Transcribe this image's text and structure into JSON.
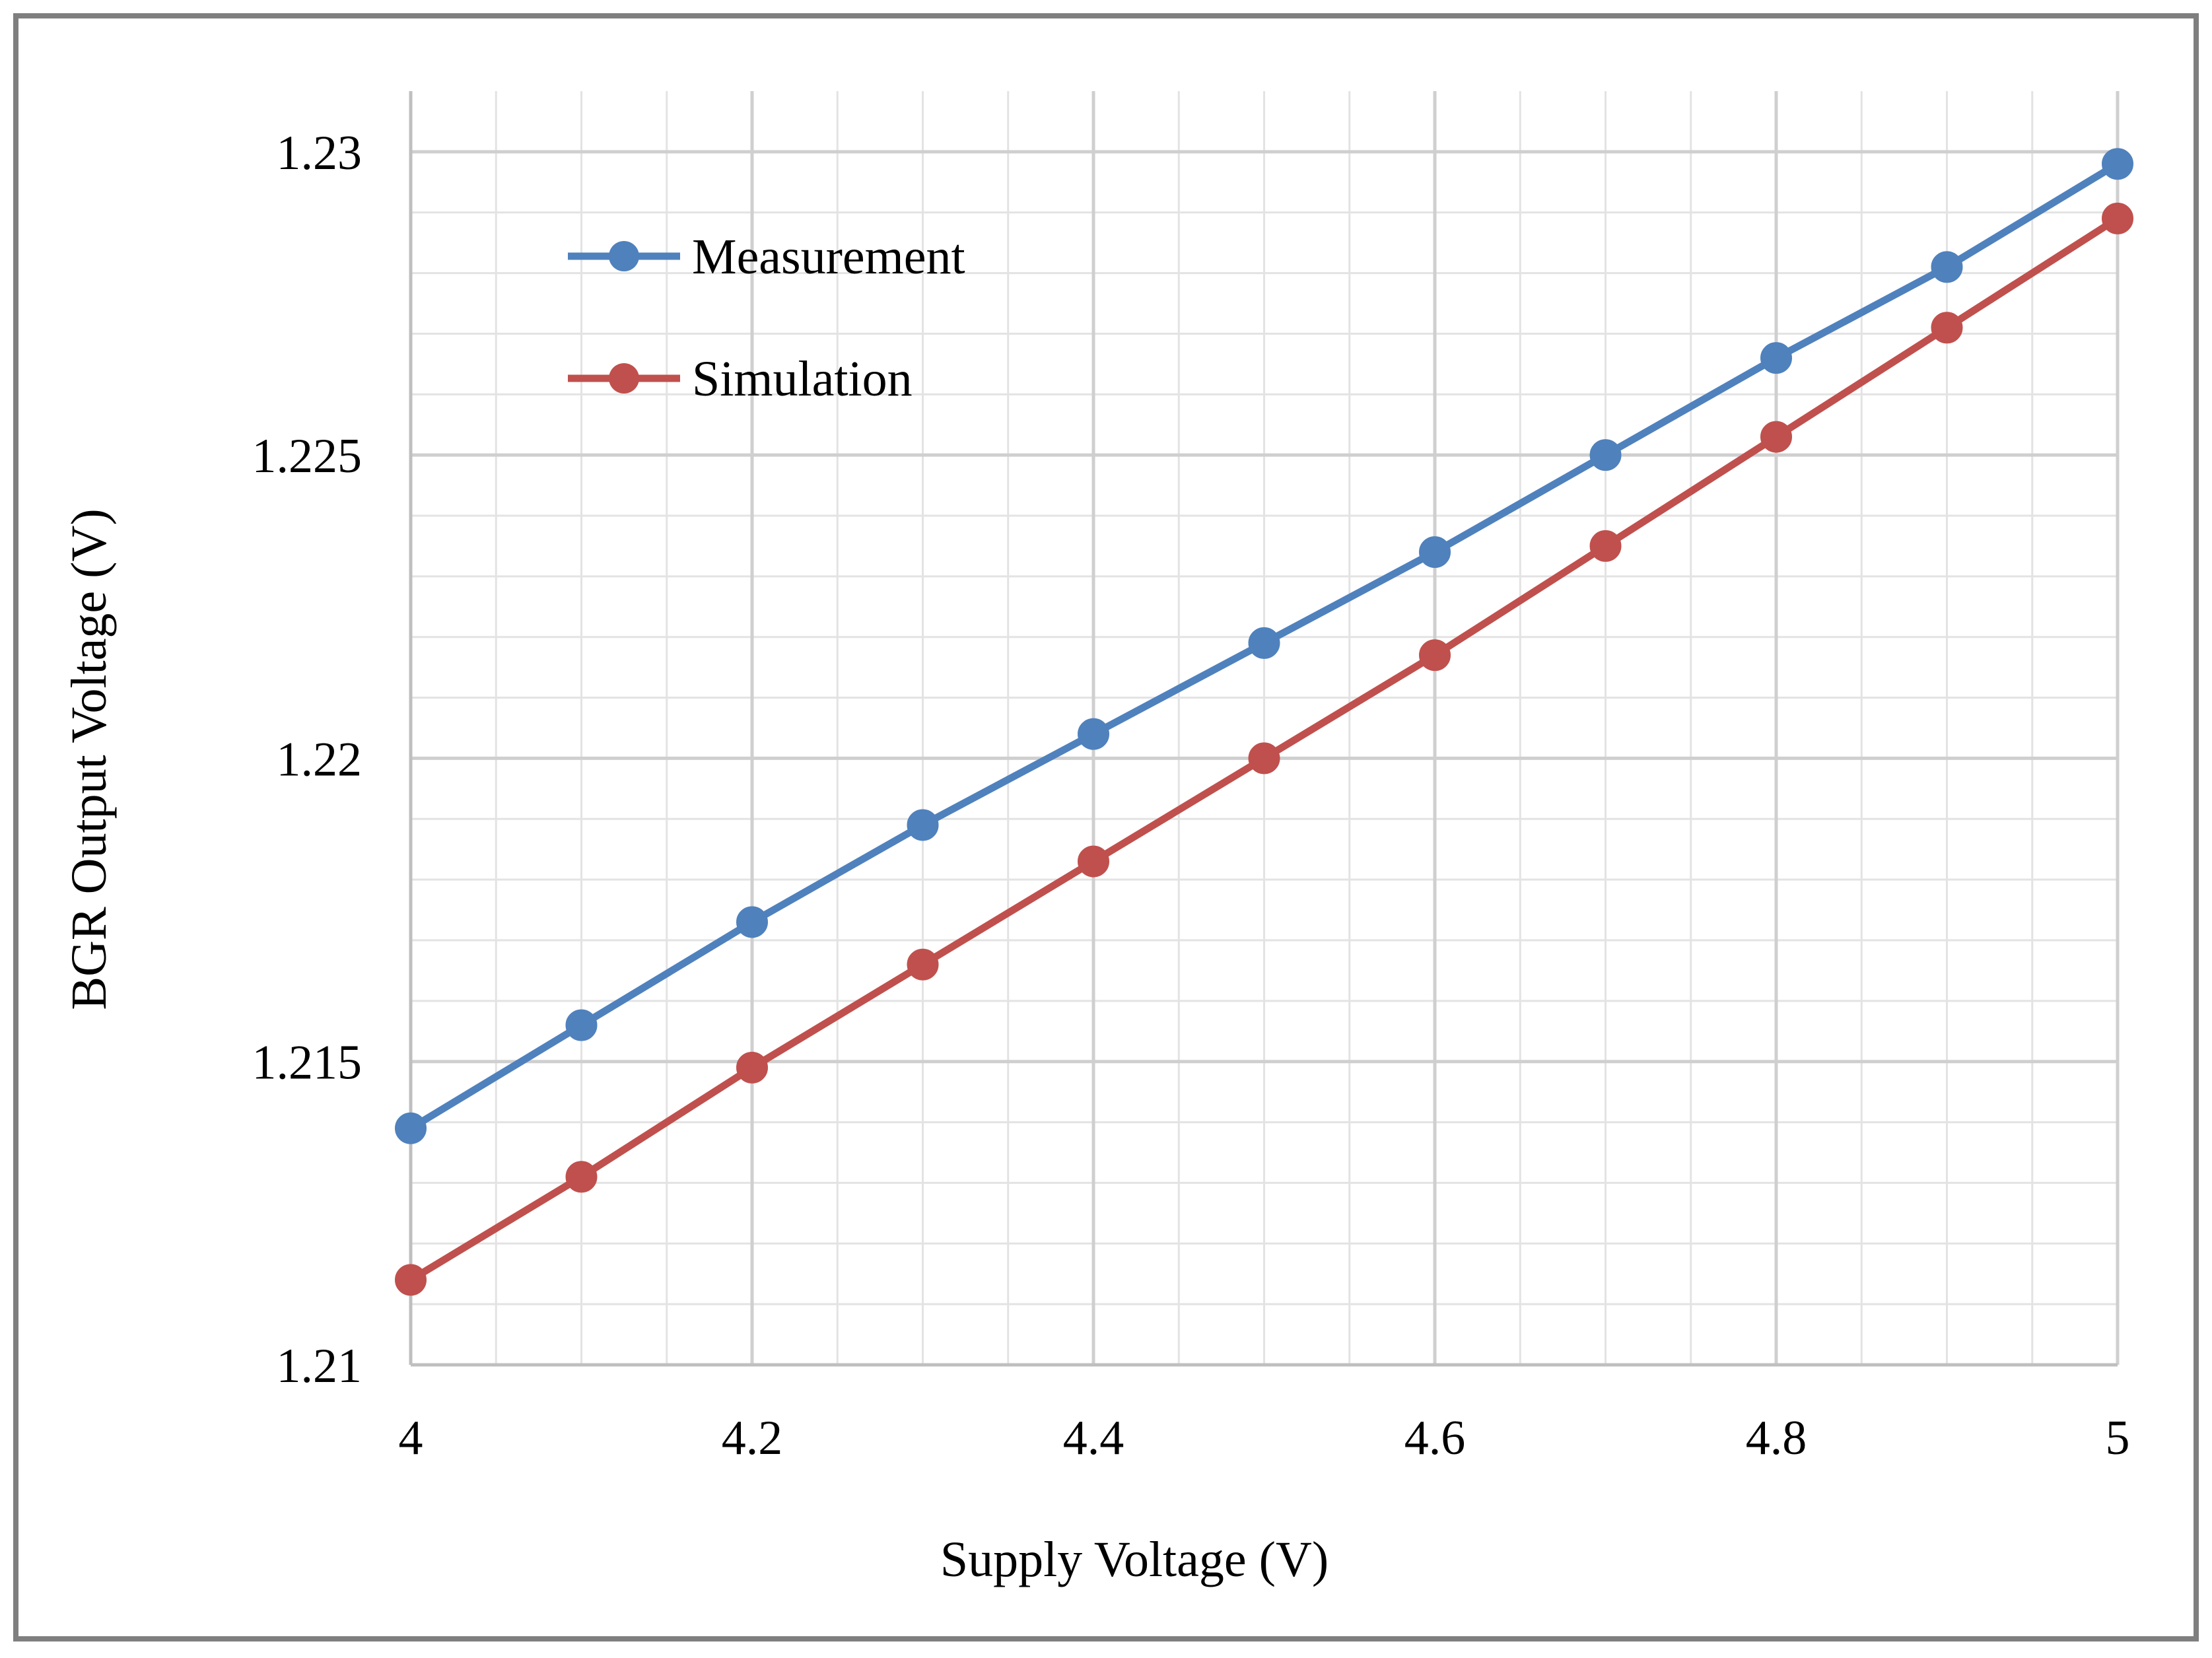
{
  "chart_data": {
    "type": "line",
    "title": "",
    "xlabel": "Supply Voltage (V)",
    "ylabel": "BGR Output Voltage (V)",
    "xlim": [
      4,
      5
    ],
    "ylim": [
      1.21,
      1.231
    ],
    "x_ticks": [
      "4",
      "4.2",
      "4.4",
      "4.6",
      "4.8",
      "5"
    ],
    "y_ticks": [
      "1.21",
      "1.215",
      "1.22",
      "1.225",
      "1.23"
    ],
    "x_tick_values": [
      4,
      4.2,
      4.4,
      4.6,
      4.8,
      5
    ],
    "y_tick_values": [
      1.21,
      1.215,
      1.22,
      1.225,
      1.23
    ],
    "grid": true,
    "minor_grid": true,
    "legend_position": "top-left",
    "x": [
      4.0,
      4.1,
      4.2,
      4.3,
      4.4,
      4.5,
      4.6,
      4.7,
      4.8,
      4.9,
      5.0
    ],
    "series": [
      {
        "name": "Measurement",
        "color": "#4F81BD",
        "values": [
          1.2139,
          1.2156,
          1.2173,
          1.2189,
          1.2204,
          1.2219,
          1.2234,
          1.225,
          1.2266,
          1.2281,
          1.2298
        ]
      },
      {
        "name": "Simulation",
        "color": "#C0504D",
        "values": [
          1.2114,
          1.2131,
          1.2149,
          1.2166,
          1.2183,
          1.22,
          1.2217,
          1.2235,
          1.2253,
          1.2271,
          1.2289
        ]
      }
    ]
  }
}
